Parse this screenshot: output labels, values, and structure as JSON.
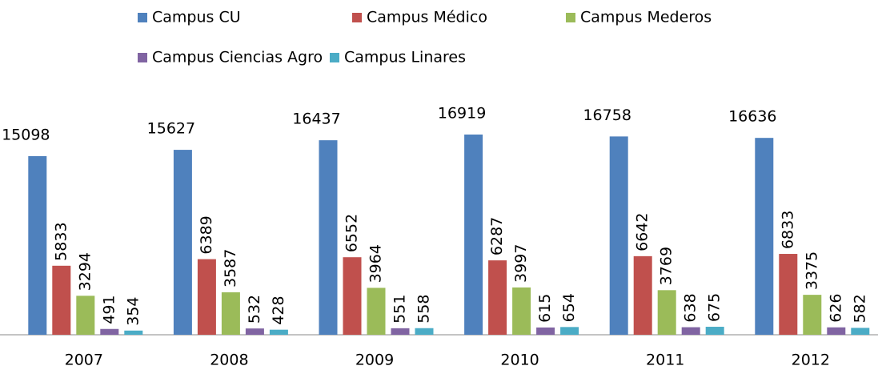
{
  "chart_data": {
    "type": "bar",
    "categories": [
      "2007",
      "2008",
      "2009",
      "2010",
      "2011",
      "2012"
    ],
    "series": [
      {
        "name": "Campus CU",
        "color": "#4f81bd",
        "values": [
          15098,
          15627,
          16437,
          16919,
          16758,
          16636
        ]
      },
      {
        "name": "Campus Médico",
        "color": "#c0504d",
        "values": [
          5833,
          6389,
          6552,
          6287,
          6642,
          6833
        ]
      },
      {
        "name": "Campus Mederos",
        "color": "#9bbb59",
        "values": [
          3294,
          3587,
          3964,
          3997,
          3769,
          3375
        ]
      },
      {
        "name": "Campus Ciencias Agro",
        "color": "#8064a2",
        "values": [
          491,
          532,
          551,
          615,
          638,
          626
        ]
      },
      {
        "name": "Campus Linares",
        "color": "#4bacc6",
        "values": [
          354,
          428,
          558,
          654,
          675,
          582
        ]
      }
    ]
  }
}
